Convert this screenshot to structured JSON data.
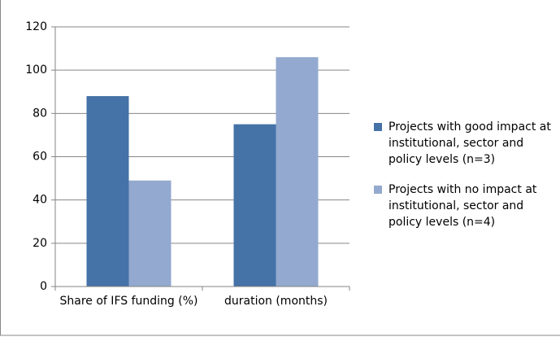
{
  "chart_data": {
    "type": "bar",
    "categories": [
      "Share of IFS funding (%)",
      "duration (months)"
    ],
    "series": [
      {
        "name": "Projects with good impact at institutional, sector and policy levels (n=3)",
        "color": "#4572a7",
        "values": [
          88,
          75
        ]
      },
      {
        "name": "Projects with no impact at institutional, sector and policy levels (n=4)",
        "color": "#93a9cf",
        "values": [
          49,
          106
        ]
      }
    ],
    "ylim": [
      0,
      120
    ],
    "yticks": [
      0,
      20,
      40,
      60,
      80,
      100,
      120
    ],
    "grid": true,
    "legend": "right"
  }
}
